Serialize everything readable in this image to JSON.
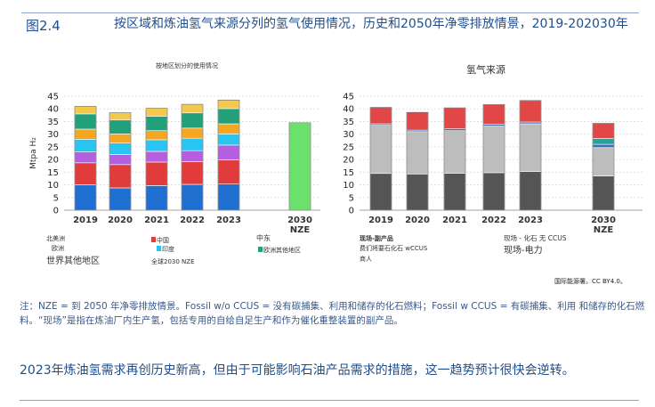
{
  "header": {
    "fig_label": "图2.4",
    "title": "按区域和炼油氢气来源分列的氢气使用情况，历史和2050年净零排放情景，2019-202030年"
  },
  "colors": {
    "north_america": "#1f6fd1",
    "china": "#e23b3b",
    "europe": "#b65ee0",
    "india": "#28c4f2",
    "middle_east": "#f5a623",
    "rest_of_world": "#21a07a",
    "nze_total": "#6be06b",
    "fossil_no_ccus": "#555555",
    "byproduct": "#bdbdbd",
    "fossil_ccus": "#3a6fb0",
    "electricity": "#2aa198",
    "onsite_fossil": "#e24747"
  },
  "chart_data": [
    {
      "type": "bar",
      "title": "按地区划分的使用情况",
      "ylabel": "Mtpa H₂",
      "ylim": [
        0,
        45
      ],
      "yticks": [
        0,
        5,
        10,
        15,
        20,
        25,
        30,
        35,
        40,
        45
      ],
      "categories": [
        "2019",
        "2020",
        "2021",
        "2022",
        "2023",
        "2030 NZE"
      ],
      "category_labels": [
        [
          "2019"
        ],
        [
          "2020"
        ],
        [
          "2021"
        ],
        [
          "2022"
        ],
        [
          "2023"
        ],
        [
          "2030",
          "NZE"
        ]
      ],
      "stacked": true,
      "series": [
        {
          "key": "north_america",
          "values": [
            10,
            8.8,
            9.7,
            10.2,
            10.3,
            0
          ]
        },
        {
          "key": "china",
          "values": [
            8.7,
            9.2,
            9.3,
            9,
            9.6,
            0
          ]
        },
        {
          "key": "europe",
          "values": [
            4.3,
            4,
            4.2,
            4.3,
            5.8,
            0
          ]
        },
        {
          "key": "india",
          "values": [
            5,
            4.5,
            4.6,
            4.9,
            4.4,
            0
          ]
        },
        {
          "key": "middle_east",
          "values": [
            4,
            3.6,
            3.6,
            4,
            4,
            0
          ]
        },
        {
          "key": "rest_of_world",
          "values": [
            6,
            5.5,
            5.7,
            6,
            6,
            0
          ]
        },
        {
          "key": "remainder",
          "values": [
            3,
            2.9,
            3.1,
            3.4,
            3.4,
            0
          ]
        },
        {
          "key": "nze_total",
          "values": [
            0,
            0,
            0,
            0,
            0,
            34.5
          ]
        }
      ],
      "legend": [
        {
          "label": "北美洲",
          "key": "north_america"
        },
        {
          "label": "中国",
          "key": "china"
        },
        {
          "label": "中东",
          "key": "middle_east"
        },
        {
          "label": "欧洲",
          "key": "europe"
        },
        {
          "label": "印度",
          "key": "india"
        },
        {
          "label": "欧洲其他地区",
          "key": "rest_of_world"
        },
        {
          "label": "世界其他地区",
          "key": "remainder"
        },
        {
          "label": "全球2030 NZE",
          "key": "nze_total"
        }
      ]
    },
    {
      "type": "bar",
      "title": "氢气来源",
      "ylim": [
        0,
        45
      ],
      "yticks": [
        0,
        5,
        10,
        15,
        20,
        25,
        30,
        35,
        40,
        45
      ],
      "categories": [
        "2019",
        "2020",
        "2021",
        "2022",
        "2023",
        "2030 NZE"
      ],
      "category_labels": [
        [
          "2019"
        ],
        [
          "2020"
        ],
        [
          "2021"
        ],
        [
          "2022"
        ],
        [
          "2023"
        ],
        [
          "2030",
          "NZE"
        ]
      ],
      "stacked": true,
      "series": [
        {
          "key": "fossil_no_ccus",
          "values": [
            14.5,
            14.3,
            14.6,
            14.8,
            15.3,
            13.5
          ]
        },
        {
          "key": "byproduct",
          "values": [
            19,
            16.7,
            16.8,
            18.4,
            18.8,
            11.2
          ]
        },
        {
          "key": "fossil_ccus",
          "values": [
            0.6,
            0.6,
            0.7,
            0.7,
            0.7,
            1.3
          ]
        },
        {
          "key": "electricity",
          "values": [
            0,
            0,
            0,
            0,
            0,
            2.3
          ]
        },
        {
          "key": "onsite_fossil",
          "values": [
            6.5,
            7,
            8.3,
            7.8,
            8.5,
            6
          ]
        }
      ],
      "legend": [
        {
          "label": "现场-副产品",
          "key": "byproduct"
        },
        {
          "label": "现场 - 化石 无 CCUS",
          "key": "onsite_fossil"
        },
        {
          "label": "费们将要石化石 wCCUS",
          "key": "fossil_ccus"
        },
        {
          "label": "现场-电力",
          "key": "electricity"
        },
        {
          "label": "商人",
          "key": "fossil_no_ccus"
        }
      ]
    }
  ],
  "source": "国际能源署。CC BY4.0。",
  "note": "注：NZE = 到 2050 年净零排放情景。Fossil w/o CCUS = 没有碳捕集、利用和储存的化石燃料；Fossil w CCUS = 有碳捕集、利用 和储存的化石燃料。“现场”是指在炼油厂内生产氢，包括专用的自给自足生产和作为催化重整装置的副产品。",
  "conclusion": "2023年炼油氢需求再创历史新高，但由于可能影响石油产品需求的措施，这一趋势预计很快会逆转。"
}
